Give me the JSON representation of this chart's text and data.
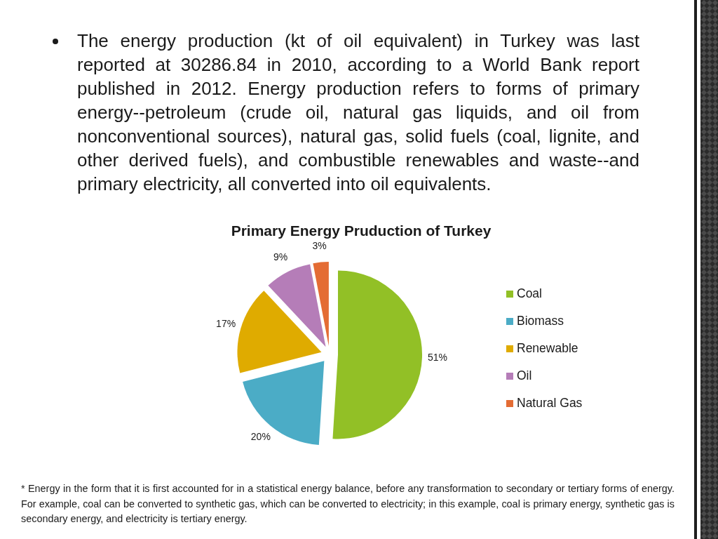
{
  "chart_data": {
    "type": "pie",
    "title": "Primary Energy Pruduction of Turkey",
    "categories": [
      "Coal",
      "Biomass",
      "Renewable",
      "Oil",
      "Natural Gas"
    ],
    "values": [
      51,
      20,
      17,
      9,
      3
    ],
    "colors": [
      "#92c026",
      "#4bacc6",
      "#dfab00",
      "#b57db8",
      "#e46c34"
    ],
    "value_labels": [
      "51%",
      "20%",
      "17%",
      "9%",
      "3%"
    ],
    "legend": "right",
    "annotations": [
      "The energy production (kt of oil equivalent) in Turkey was last reported at 30286.84 in 2010, according to a World Bank report published in 2012. Energy production refers to forms of primary energy--petroleum (crude oil, natural gas liquids, and oil from nonconventional sources), natural gas, solid fuels (coal, lignite, and other derived fuels), and combustible renewables and waste--and primary electricity, all converted into oil equivalents.",
      "* Energy in the form that it is first accounted for in a statistical energy balance, before any transformation to secondary or tertiary forms of energy. For example, coal can be converted to synthetic gas, which can be converted to electricity; in this example, coal is primary energy, synthetic gas is secondary energy, and electricity is tertiary energy."
    ]
  }
}
